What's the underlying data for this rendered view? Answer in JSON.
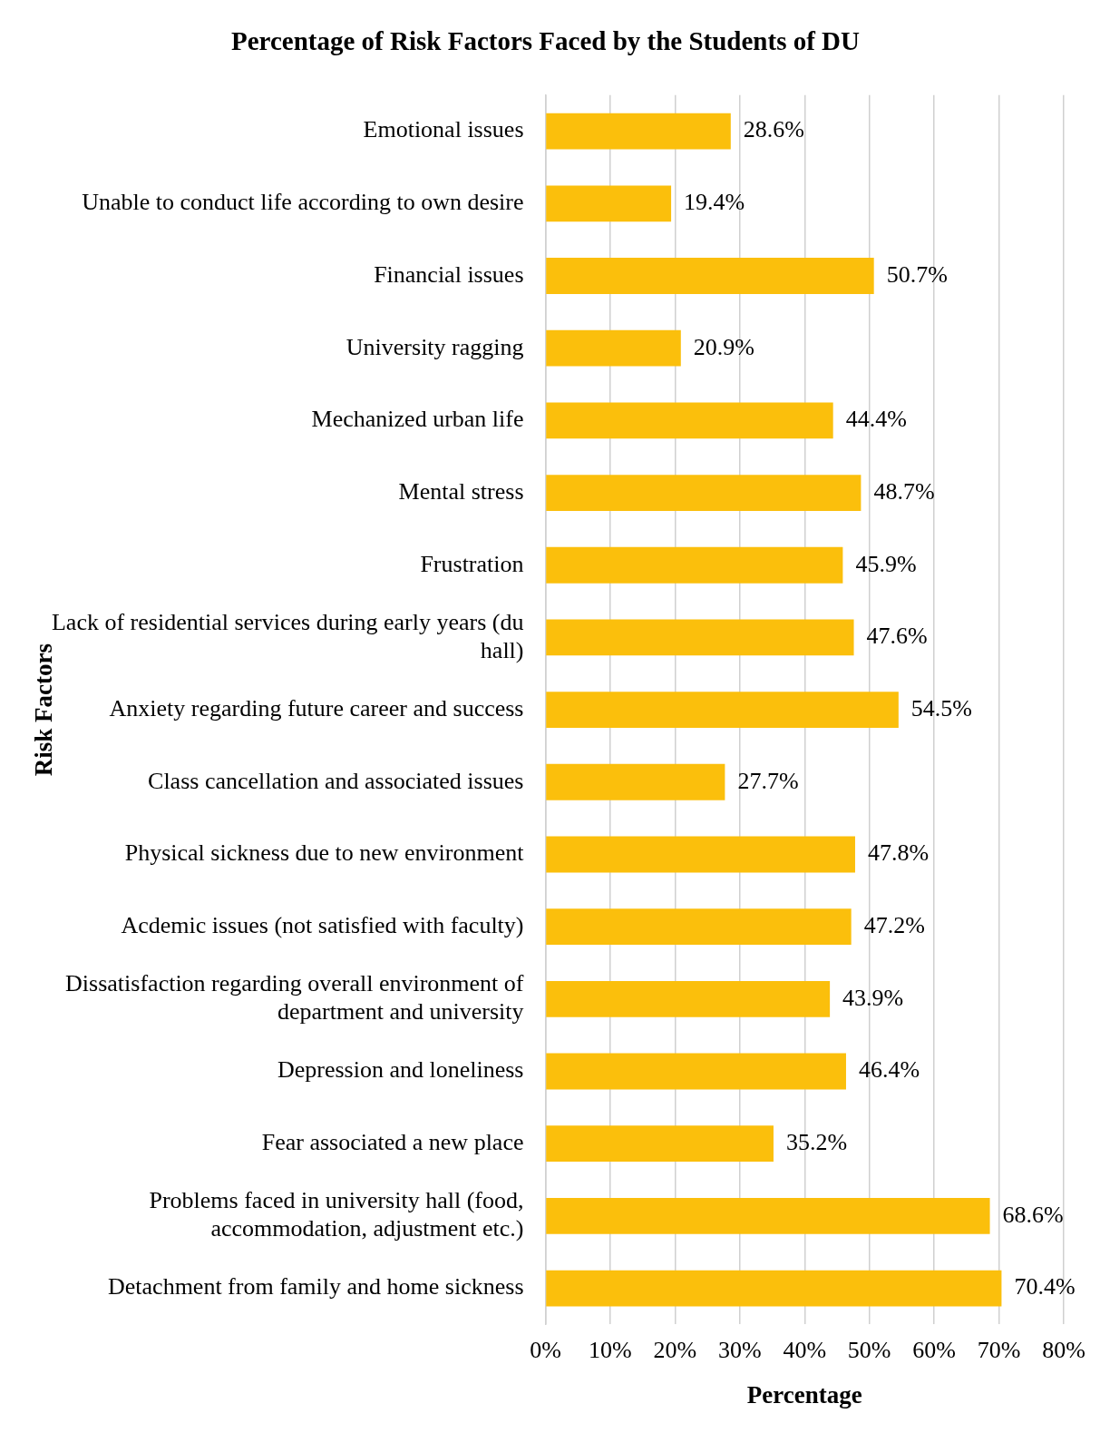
{
  "chart_data": {
    "type": "bar",
    "orientation": "horizontal",
    "title": "Percentage of Risk Factors Faced by the Students of DU",
    "xlabel": "Percentage",
    "ylabel": "Risk Factors",
    "categories": [
      "Emotional issues",
      "Unable to conduct life according to own desire",
      "Financial issues",
      "University ragging",
      "Mechanized urban life",
      "Mental stress",
      "Frustration",
      "Lack of residential services during early years (du hall)",
      "Anxiety regarding future career and success",
      "Class cancellation and associated issues",
      "Physical sickness due to new environment",
      "Acdemic issues (not satisfied with faculty)",
      "Dissatisfaction regarding overall environment of department and university",
      "Depression and loneliness",
      "Fear associated a new place",
      "Problems faced in university hall (food, accommodation, adjustment etc.)",
      "Detachment from family and home sickness"
    ],
    "values": [
      28.6,
      19.4,
      50.7,
      20.9,
      44.4,
      48.7,
      45.9,
      47.6,
      54.5,
      27.7,
      47.8,
      47.2,
      43.9,
      46.4,
      35.2,
      68.6,
      70.4
    ],
    "value_labels": [
      "28.6%",
      "19.4%",
      "50.7%",
      "20.9%",
      "44.4%",
      "48.7%",
      "45.9%",
      "47.6%",
      "54.5%",
      "27.7%",
      "47.8%",
      "47.2%",
      "43.9%",
      "46.4%",
      "35.2%",
      "68.6%",
      "70.4%"
    ],
    "color": "#fbbf0c",
    "xlim": [
      0,
      80
    ],
    "xticks": [
      {
        "value": 0,
        "label": "0%"
      },
      {
        "value": 10,
        "label": "10%"
      },
      {
        "value": 20,
        "label": "20%"
      },
      {
        "value": 30,
        "label": "30%"
      },
      {
        "value": 40,
        "label": "40%"
      },
      {
        "value": 50,
        "label": "50%"
      },
      {
        "value": 60,
        "label": "60%"
      },
      {
        "value": 70,
        "label": "70%"
      },
      {
        "value": 80,
        "label": "80%"
      }
    ],
    "grid": "x",
    "legend": false
  }
}
